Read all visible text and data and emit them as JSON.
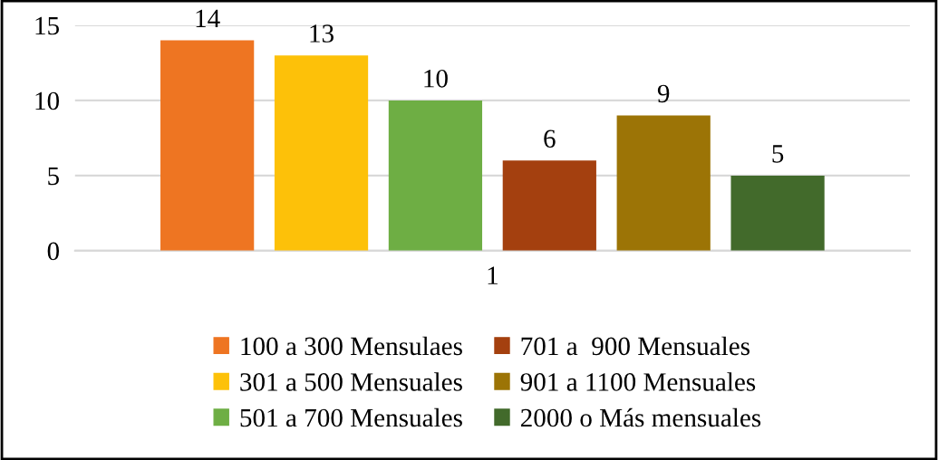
{
  "chart_data": {
    "type": "bar",
    "categories": [
      "1"
    ],
    "series": [
      {
        "name": "100 a 300 Mensulaes",
        "color": "#ee7522",
        "values": [
          14
        ]
      },
      {
        "name": "301 a 500 Mensuales",
        "color": "#fdc109",
        "values": [
          13
        ]
      },
      {
        "name": "501 a 700 Mensuales",
        "color": "#6eae44",
        "values": [
          10
        ]
      },
      {
        "name": "701 a  900 Mensuales",
        "color": "#a4400f",
        "values": [
          6
        ]
      },
      {
        "name": "901 a 1100 Mensuales",
        "color": "#9c7406",
        "values": [
          9
        ]
      },
      {
        "name": "2000 o Más mensuales",
        "color": "#426a2b",
        "values": [
          5
        ]
      }
    ],
    "ylim": [
      0,
      15
    ],
    "yticks": [
      0,
      5,
      10,
      15
    ],
    "grid": "y",
    "legend": "bottom",
    "data_labels": true
  }
}
